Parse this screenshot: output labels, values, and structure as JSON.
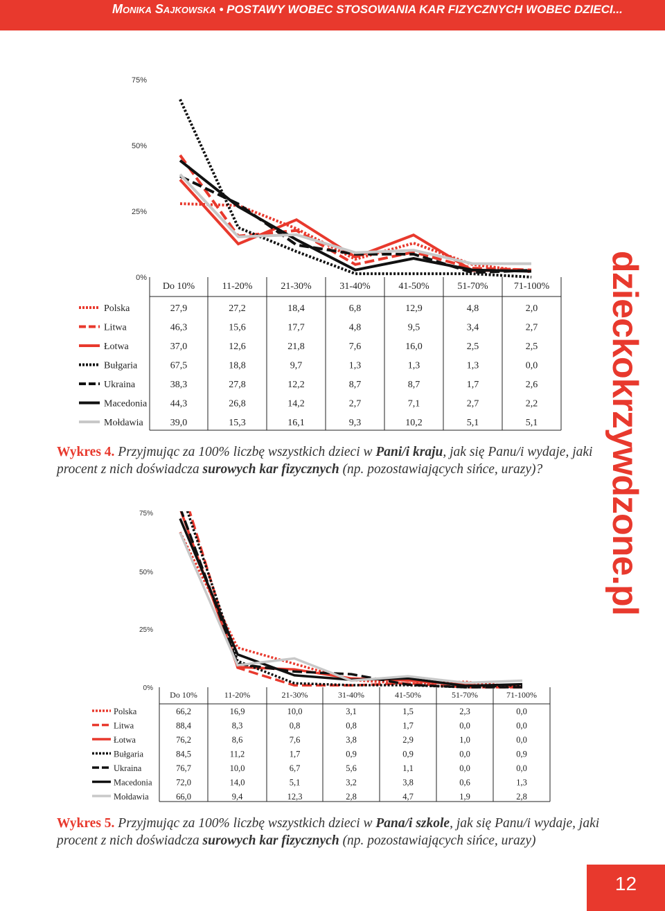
{
  "header": {
    "author": "Monika Sajkowska",
    "separator": "•",
    "title": "POSTAWY WOBEC STOSOWANIA KAR FIZYCZNYCH WOBEC DZIECI..."
  },
  "watermark": "dzieckokrzywdzone.pl",
  "page_number": "12",
  "legend_styles": [
    {
      "name": "Polska",
      "color": "#e8392d",
      "dash": "dotted"
    },
    {
      "name": "Litwa",
      "color": "#e8392d",
      "dash": "dashed"
    },
    {
      "name": "Łotwa",
      "color": "#e8392d",
      "dash": "solid"
    },
    {
      "name": "Bułgaria",
      "color": "#111111",
      "dash": "dotted"
    },
    {
      "name": "Ukraina",
      "color": "#111111",
      "dash": "dashed"
    },
    {
      "name": "Macedonia",
      "color": "#111111",
      "dash": "solid"
    },
    {
      "name": "Mołdawia",
      "color": "#c8c8c8",
      "dash": "solid"
    }
  ],
  "chart_data": [
    {
      "type": "line",
      "ylim": [
        0,
        75
      ],
      "yticks": [
        "0%",
        "25%",
        "50%",
        "75%"
      ],
      "categories": [
        "Do 10%",
        "11-20%",
        "21-30%",
        "31-40%",
        "41-50%",
        "51-70%",
        "71-100%"
      ],
      "series": [
        {
          "name": "Polska",
          "values": [
            "27,9",
            "27,2",
            "18,4",
            "6,8",
            "12,9",
            "4,8",
            "2,0"
          ]
        },
        {
          "name": "Litwa",
          "values": [
            "46,3",
            "15,6",
            "17,7",
            "4,8",
            "9,5",
            "3,4",
            "2,7"
          ]
        },
        {
          "name": "Łotwa",
          "values": [
            "37,0",
            "12,6",
            "21,8",
            "7,6",
            "16,0",
            "2,5",
            "2,5"
          ]
        },
        {
          "name": "Bułgaria",
          "values": [
            "67,5",
            "18,8",
            "9,7",
            "1,3",
            "1,3",
            "1,3",
            "0,0"
          ]
        },
        {
          "name": "Ukraina",
          "values": [
            "38,3",
            "27,8",
            "12,2",
            "8,7",
            "8,7",
            "1,7",
            "2,6"
          ]
        },
        {
          "name": "Macedonia",
          "values": [
            "44,3",
            "26,8",
            "14,2",
            "2,7",
            "7,1",
            "2,7",
            "2,2"
          ]
        },
        {
          "name": "Mołdawia",
          "values": [
            "39,0",
            "15,3",
            "16,1",
            "9,3",
            "10,2",
            "5,1",
            "5,1"
          ]
        }
      ],
      "caption": {
        "label": "Wykres 4.",
        "p1": " Przyjmując za 100% liczbę wszystkich dzieci w ",
        "b1": "Pani/i kraju",
        "p2": ", jak się Panu/i wydaje, jaki procent z nich doświadcza ",
        "b2": "surowych kar fizycznych",
        "p3": " (np. pozostawiających sińce, urazy)?"
      }
    },
    {
      "type": "line",
      "ylim": [
        0,
        75
      ],
      "yticks": [
        "0%",
        "25%",
        "50%",
        "75%"
      ],
      "categories": [
        "Do 10%",
        "11-20%",
        "21-30%",
        "31-40%",
        "41-50%",
        "51-70%",
        "71-100%"
      ],
      "series": [
        {
          "name": "Polska",
          "values": [
            "66,2",
            "16,9",
            "10,0",
            "3,1",
            "1,5",
            "2,3",
            "0,0"
          ]
        },
        {
          "name": "Litwa",
          "values": [
            "88,4",
            "8,3",
            "0,8",
            "0,8",
            "1,7",
            "0,0",
            "0,0"
          ]
        },
        {
          "name": "Łotwa",
          "values": [
            "76,2",
            "8,6",
            "7,6",
            "3,8",
            "2,9",
            "1,0",
            "0,0"
          ]
        },
        {
          "name": "Bułgaria",
          "values": [
            "84,5",
            "11,2",
            "1,7",
            "0,9",
            "0,9",
            "0,0",
            "0,9"
          ]
        },
        {
          "name": "Ukraina",
          "values": [
            "76,7",
            "10,0",
            "6,7",
            "5,6",
            "1,1",
            "0,0",
            "0,0"
          ]
        },
        {
          "name": "Macedonia",
          "values": [
            "72,0",
            "14,0",
            "5,1",
            "3,2",
            "3,8",
            "0,6",
            "1,3"
          ]
        },
        {
          "name": "Mołdawia",
          "values": [
            "66,0",
            "9,4",
            "12,3",
            "2,8",
            "4,7",
            "1,9",
            "2,8"
          ]
        }
      ],
      "caption": {
        "label": "Wykres 5.",
        "p1": " Przyjmując za 100% liczbę wszystkich dzieci w ",
        "b1": "Pana/i szkole",
        "p2": ", jak się Panu/i wydaje, jaki procent z nich doświadcza ",
        "b2": "surowych kar fizycznych",
        "p3": " (np. pozostawiających sińce, urazy)"
      }
    }
  ]
}
